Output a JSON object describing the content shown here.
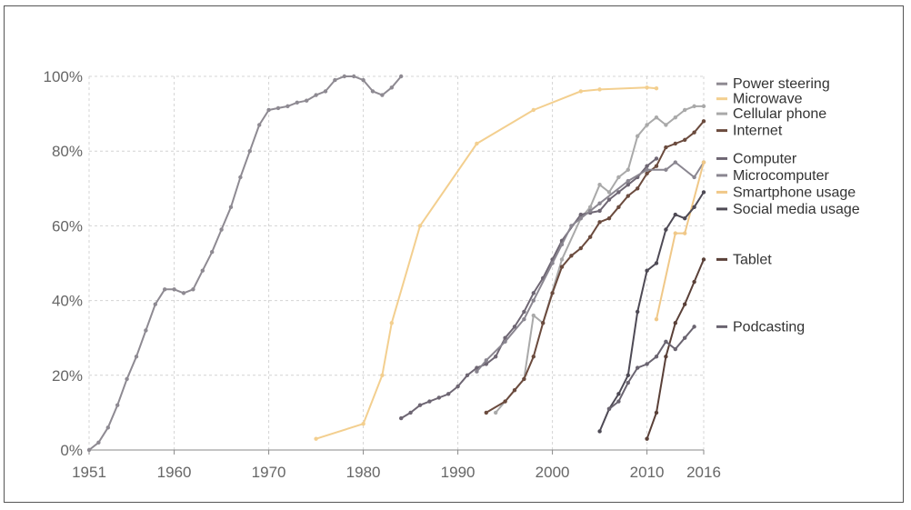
{
  "chart_data": {
    "type": "line",
    "title": "",
    "xlabel": "",
    "ylabel": "",
    "xlim": [
      1951,
      2016
    ],
    "ylim": [
      0,
      100
    ],
    "grid": true,
    "legend_position": "right, labels at series ends",
    "x_ticks": [
      {
        "value": 1951,
        "label": "1951"
      },
      {
        "value": 1960,
        "label": "1960"
      },
      {
        "value": 1970,
        "label": "1970"
      },
      {
        "value": 1980,
        "label": "1980"
      },
      {
        "value": 1990,
        "label": "1990"
      },
      {
        "value": 2000,
        "label": "2000"
      },
      {
        "value": 2010,
        "label": "2010"
      },
      {
        "value": 2016,
        "label": "2016"
      }
    ],
    "y_ticks": [
      {
        "value": 0,
        "label": "0%"
      },
      {
        "value": 20,
        "label": "20%"
      },
      {
        "value": 40,
        "label": "40%"
      },
      {
        "value": 60,
        "label": "60%"
      },
      {
        "value": 80,
        "label": "80%"
      },
      {
        "value": 100,
        "label": "100%"
      }
    ],
    "series": [
      {
        "name": "Power steering",
        "color": "#8e8a92",
        "label_y": 98,
        "points": [
          [
            1951,
            0
          ],
          [
            1952,
            2
          ],
          [
            1953,
            6
          ],
          [
            1954,
            12
          ],
          [
            1955,
            19
          ],
          [
            1956,
            25
          ],
          [
            1957,
            32
          ],
          [
            1958,
            39
          ],
          [
            1959,
            43
          ],
          [
            1960,
            43
          ],
          [
            1961,
            42
          ],
          [
            1962,
            43
          ],
          [
            1963,
            48
          ],
          [
            1964,
            53
          ],
          [
            1965,
            59
          ],
          [
            1966,
            65
          ],
          [
            1967,
            73
          ],
          [
            1968,
            80
          ],
          [
            1969,
            87
          ],
          [
            1970,
            91
          ],
          [
            1971,
            91.5
          ],
          [
            1972,
            92
          ],
          [
            1973,
            93
          ],
          [
            1974,
            93.5
          ],
          [
            1975,
            95
          ],
          [
            1976,
            96
          ],
          [
            1977,
            99
          ],
          [
            1978,
            100
          ],
          [
            1979,
            100
          ],
          [
            1980,
            99
          ],
          [
            1981,
            96
          ],
          [
            1982,
            95
          ],
          [
            1983,
            97
          ],
          [
            1984,
            100
          ]
        ]
      },
      {
        "name": "Microwave",
        "color": "#f3cf8f",
        "label_y": 94,
        "points": [
          [
            1975,
            3
          ],
          [
            1980,
            7
          ],
          [
            1982,
            20
          ],
          [
            1983,
            34
          ],
          [
            1986,
            60
          ],
          [
            1992,
            82
          ],
          [
            1998,
            91
          ],
          [
            2003,
            96
          ],
          [
            2005,
            96.5
          ],
          [
            2010,
            97
          ],
          [
            2011,
            96.8
          ]
        ]
      },
      {
        "name": "Cellular phone",
        "color": "#a9a9a9",
        "label_y": 90,
        "points": [
          [
            1994,
            10
          ],
          [
            1997,
            19
          ],
          [
            1998,
            36
          ],
          [
            1999,
            34
          ],
          [
            2001,
            51
          ],
          [
            2003,
            62
          ],
          [
            2004,
            65
          ],
          [
            2005,
            71
          ],
          [
            2006,
            69
          ],
          [
            2007,
            73
          ],
          [
            2008,
            75
          ],
          [
            2009,
            84
          ],
          [
            2010,
            87
          ],
          [
            2011,
            89
          ],
          [
            2012,
            87
          ],
          [
            2013,
            89
          ],
          [
            2014,
            91
          ],
          [
            2015,
            92
          ],
          [
            2016,
            92
          ]
        ]
      },
      {
        "name": "Internet",
        "color": "#6b4b3e",
        "label_y": 85.5,
        "points": [
          [
            1993,
            10
          ],
          [
            1995,
            13
          ],
          [
            1996,
            16
          ],
          [
            1997,
            19
          ],
          [
            1998,
            25
          ],
          [
            1999,
            34
          ],
          [
            2000,
            42
          ],
          [
            2001,
            49
          ],
          [
            2002,
            52
          ],
          [
            2003,
            54
          ],
          [
            2004,
            57
          ],
          [
            2005,
            61
          ],
          [
            2006,
            62
          ],
          [
            2007,
            65
          ],
          [
            2008,
            68
          ],
          [
            2009,
            70
          ],
          [
            2010,
            74
          ],
          [
            2011,
            76
          ],
          [
            2012,
            81
          ],
          [
            2013,
            82
          ],
          [
            2014,
            83
          ],
          [
            2015,
            85
          ],
          [
            2016,
            88
          ]
        ]
      },
      {
        "name": "Computer",
        "color": "#6e6673",
        "label_y": 78,
        "points": [
          [
            1984,
            8.5
          ],
          [
            1985,
            10
          ],
          [
            1986,
            12
          ],
          [
            1987,
            13
          ],
          [
            1988,
            14
          ],
          [
            1989,
            15
          ],
          [
            1990,
            17
          ],
          [
            1991,
            20
          ],
          [
            1992,
            22
          ],
          [
            1993,
            23
          ],
          [
            1994,
            25
          ],
          [
            1995,
            30
          ],
          [
            1996,
            33
          ],
          [
            1997,
            37
          ],
          [
            1998,
            42
          ],
          [
            1999,
            46
          ],
          [
            2000,
            51
          ],
          [
            2001,
            56
          ],
          [
            2003,
            63
          ],
          [
            2004,
            63.5
          ],
          [
            2005,
            64
          ],
          [
            2006,
            67
          ],
          [
            2007,
            69
          ],
          [
            2008,
            71
          ],
          [
            2009,
            73
          ],
          [
            2010,
            76
          ],
          [
            2011,
            78
          ]
        ]
      },
      {
        "name": "Microcomputer",
        "color": "#8a8690",
        "label_y": 73.5,
        "points": [
          [
            1992,
            21
          ],
          [
            1993,
            24
          ],
          [
            1995,
            29
          ],
          [
            1997,
            35
          ],
          [
            1998,
            40
          ],
          [
            2000,
            50
          ],
          [
            2001,
            55
          ],
          [
            2002,
            60
          ],
          [
            2003,
            62
          ],
          [
            2004,
            64
          ],
          [
            2005,
            66
          ],
          [
            2008,
            72
          ],
          [
            2010,
            75
          ],
          [
            2012,
            75
          ],
          [
            2013,
            77
          ],
          [
            2015,
            73
          ],
          [
            2016,
            77
          ]
        ]
      },
      {
        "name": "Smartphone usage",
        "color": "#f0c888",
        "label_y": 69,
        "points": [
          [
            2011,
            35
          ],
          [
            2013,
            58
          ],
          [
            2014,
            58
          ],
          [
            2016,
            77
          ]
        ]
      },
      {
        "name": "Social media usage",
        "color": "#4e4a55",
        "label_y": 64.5,
        "points": [
          [
            2005,
            5
          ],
          [
            2006,
            11
          ],
          [
            2007,
            15
          ],
          [
            2008,
            20
          ],
          [
            2009,
            37
          ],
          [
            2010,
            48
          ],
          [
            2011,
            50
          ],
          [
            2012,
            59
          ],
          [
            2013,
            63
          ],
          [
            2014,
            62
          ],
          [
            2015,
            65
          ],
          [
            2016,
            69
          ]
        ]
      },
      {
        "name": "Tablet",
        "color": "#5a4038",
        "label_y": 51,
        "points": [
          [
            2010,
            3
          ],
          [
            2011,
            10
          ],
          [
            2012,
            25
          ],
          [
            2013,
            34
          ],
          [
            2014,
            39
          ],
          [
            2015,
            45
          ],
          [
            2016,
            51
          ]
        ]
      },
      {
        "name": "Podcasting",
        "color": "#6a6470",
        "label_y": 33,
        "points": [
          [
            2006,
            11
          ],
          [
            2007,
            13
          ],
          [
            2008,
            18
          ],
          [
            2009,
            22
          ],
          [
            2010,
            23
          ],
          [
            2011,
            25
          ],
          [
            2012,
            29
          ],
          [
            2013,
            27
          ],
          [
            2014,
            30
          ],
          [
            2015,
            33
          ]
        ]
      }
    ]
  }
}
